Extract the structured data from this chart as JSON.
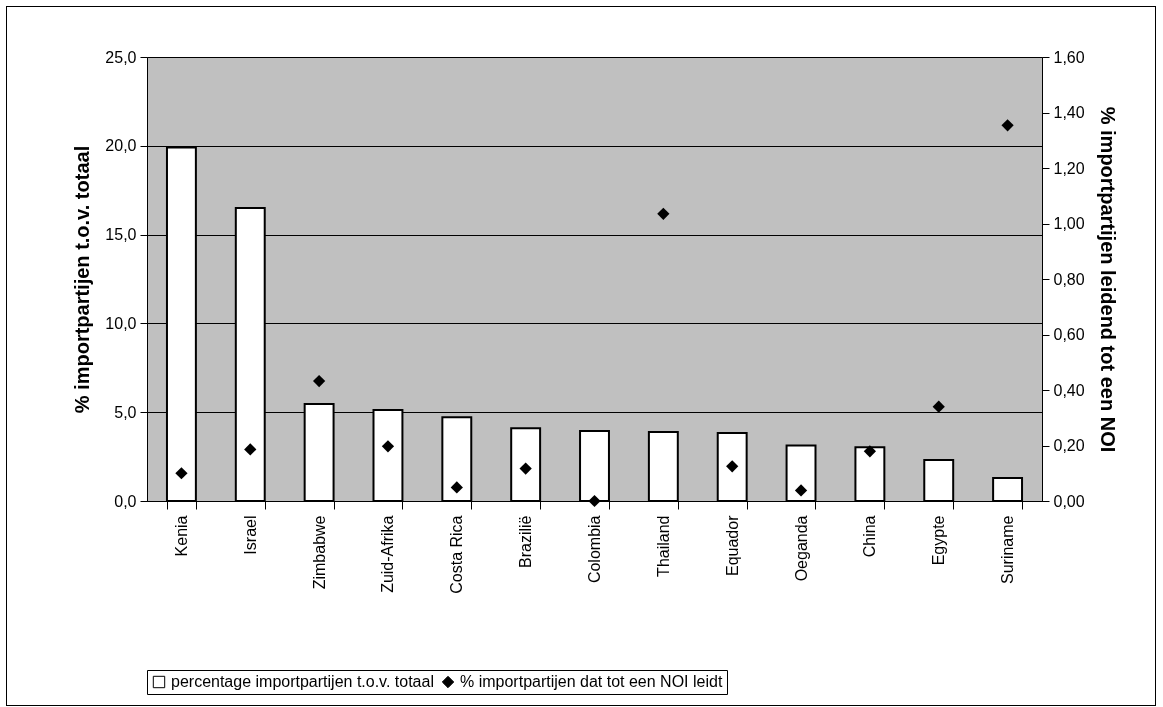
{
  "chart_data": {
    "type": "bar",
    "categories": [
      "Kenia",
      "Israel",
      "Zimbabwe",
      "Zuid-Afrika",
      "Costa Rica",
      "Brazilië",
      "Colombia",
      "Thailand",
      "Equador",
      "Oeganda",
      "China",
      "Egypte",
      "Suriname"
    ],
    "ylabel": "% importpartijen t.o.v. totaal",
    "y2label": "% importpartijen leidend tot een NOI",
    "ylim": [
      0,
      25
    ],
    "yticks": [
      {
        "value": 0,
        "label": "0,0"
      },
      {
        "value": 5,
        "label": "5,0"
      },
      {
        "value": 10,
        "label": "10,0"
      },
      {
        "value": 15,
        "label": "15,0"
      },
      {
        "value": 20,
        "label": "20,0"
      },
      {
        "value": 25,
        "label": "25,0"
      }
    ],
    "y2lim": [
      0,
      1.6
    ],
    "y2ticks": [
      {
        "value": 0,
        "label": "0,00"
      },
      {
        "value": 0.2,
        "label": "0,20"
      },
      {
        "value": 0.4,
        "label": "0,40"
      },
      {
        "value": 0.6,
        "label": "0,60"
      },
      {
        "value": 0.8,
        "label": "0,80"
      },
      {
        "value": 1,
        "label": "1,00"
      },
      {
        "value": 1.2,
        "label": "1,20"
      },
      {
        "value": 1.4,
        "label": "1,40"
      },
      {
        "value": 1.6,
        "label": "1,60"
      }
    ],
    "grid": "y",
    "legend": "bottom",
    "series": [
      {
        "name": "percentage importpartijen t.o.v. totaal",
        "color": "#ffffff",
        "values": [
          19.9,
          16.5,
          5.46,
          5.12,
          4.71,
          4.09,
          3.94,
          3.88,
          3.83,
          3.13,
          3.02,
          2.31,
          1.29
        ]
      },
      {
        "name": "% importpartijen dat tot een NOI leidt",
        "type": "scatter",
        "axis": "y2",
        "marker": "diamond",
        "color": "#000000",
        "values": [
          0.1,
          0.186,
          0.432,
          0.197,
          0.049,
          0.117,
          0,
          1.035,
          0.125,
          0.038,
          0.179,
          0.34,
          1.354
        ]
      }
    ]
  }
}
